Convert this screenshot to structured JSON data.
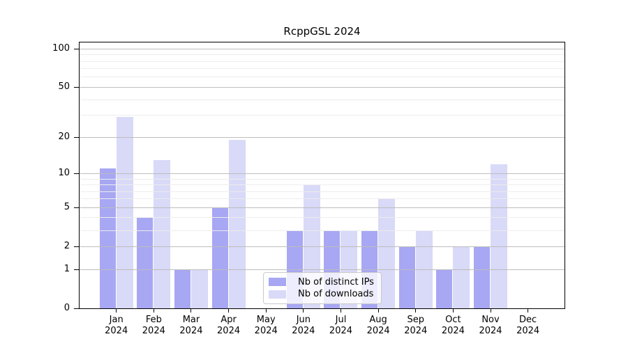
{
  "title": "RcppGSL 2024",
  "chart_data": {
    "type": "bar",
    "title": "RcppGSL 2024",
    "categories": [
      "Jan",
      "Feb",
      "Mar",
      "Apr",
      "May",
      "Jun",
      "Jul",
      "Aug",
      "Sep",
      "Oct",
      "Nov",
      "Dec"
    ],
    "category_year": "2024",
    "series": [
      {
        "name": "Nb of distinct IPs",
        "color": "#a7a7f3",
        "values": [
          11,
          4,
          1,
          5,
          0,
          3,
          3,
          3,
          2,
          1,
          2,
          0
        ]
      },
      {
        "name": "Nb of downloads",
        "color": "#d9d9f8",
        "values": [
          29,
          13,
          1,
          19,
          0,
          8,
          3,
          6,
          3,
          2,
          12,
          0
        ]
      }
    ],
    "xlabel": "",
    "ylabel": "",
    "y_scale": "log10(value+1)",
    "y_ticks": [
      0,
      1,
      2,
      5,
      10,
      20,
      50,
      100
    ],
    "y_minor_gridlines": [
      3,
      4,
      6,
      7,
      8,
      9,
      30,
      40,
      60,
      70,
      80,
      90
    ],
    "ylim": [
      0,
      113
    ],
    "grid": true,
    "legend_position": "inside lower-center",
    "colors": {
      "major_grid": "#bdbdbd",
      "minor_grid": "#ededed",
      "frame": "#000000",
      "background": "#ffffff"
    }
  }
}
